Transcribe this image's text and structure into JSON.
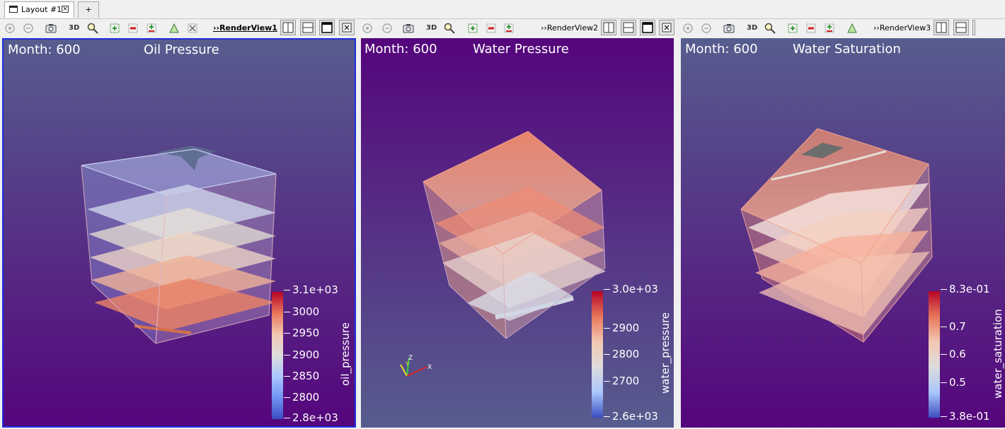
{
  "tabs": {
    "layout_label": "Layout #1",
    "close_glyph": "×",
    "add_label": "+"
  },
  "views": [
    {
      "name": "RenderView1",
      "active": true,
      "month_label": "Month: 600",
      "title": "Oil Pressure",
      "colorbar": {
        "title": "oil_pressure",
        "ticks": [
          "3.1e+03",
          "3000",
          "2950",
          "2900",
          "2850",
          "2800",
          "2.8e+03"
        ],
        "colors": [
          "#b40426",
          "#e8765b",
          "#f3c7b1",
          "#dddcdc",
          "#aac7fd",
          "#6f92f3",
          "#3b4cc0"
        ]
      },
      "background_colors": [
        "#575d8e",
        "#55057c"
      ]
    },
    {
      "name": "RenderView2",
      "active": false,
      "month_label": "Month: 600",
      "title": "Water Pressure",
      "colorbar": {
        "title": "water_pressure",
        "ticks": [
          "3.0e+03",
          "2900",
          "2800",
          "2700",
          "2.6e+03"
        ],
        "colors": [
          "#b40426",
          "#e8765b",
          "#f3c7b1",
          "#dddcdc",
          "#aac7fd",
          "#3b4cc0"
        ]
      },
      "background_colors": [
        "#55057c",
        "#575d8e"
      ],
      "axes_labels": [
        "Y",
        "Z",
        "X"
      ]
    },
    {
      "name": "RenderView3",
      "active": false,
      "month_label": "Month: 600",
      "title": "Water Saturation",
      "colorbar": {
        "title": "water_saturation",
        "ticks": [
          "8.3e-01",
          "0.7",
          "0.6",
          "0.5",
          "3.8e-01"
        ],
        "colors": [
          "#b40426",
          "#e8765b",
          "#f3c7b1",
          "#dddcdc",
          "#aac7fd",
          "#3b4cc0"
        ]
      },
      "background_colors": [
        "#575d8e",
        "#55057c"
      ]
    }
  ],
  "toolbar": {
    "three_d_label": "3D",
    "prefix": "››",
    "icons": [
      "reset-camera-icon",
      "reset-camera-closest-icon",
      "camera-capture-icon",
      "3d-toggle",
      "zoom-to-box-icon",
      "select-cells-icon",
      "deselect-icon",
      "select-points-icon",
      "interactive-select-icon",
      "clear-selection-icon"
    ],
    "split_buttons": [
      "split-horizontal-icon",
      "split-vertical-icon",
      "maximize-icon",
      "close-view-icon"
    ]
  }
}
